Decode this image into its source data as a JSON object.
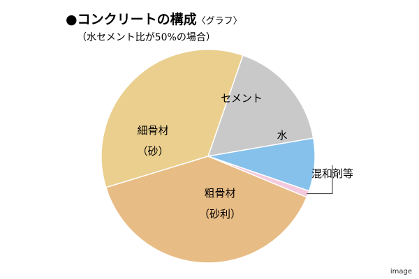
{
  "chart_data": {
    "type": "pie",
    "title": "●コンクリートの構成",
    "title_tag": "〈グラフ〉",
    "subtitle": "（水セメント比が50%の場合）",
    "slices": [
      {
        "label": "セメント",
        "value": 17,
        "color": "#c9c9c9"
      },
      {
        "label": "水",
        "value": 8,
        "color": "#86c1eb"
      },
      {
        "label": "混和剤等",
        "value": 1,
        "color": "#f4c9de"
      },
      {
        "label": "粗骨材",
        "label2": "（砂利）",
        "value": 39,
        "color": "#e8bc85"
      },
      {
        "label": "細骨材",
        "label2": "（砂）",
        "value": 35,
        "color": "#eacf8e"
      }
    ],
    "legend": "none"
  },
  "watermark": "image"
}
